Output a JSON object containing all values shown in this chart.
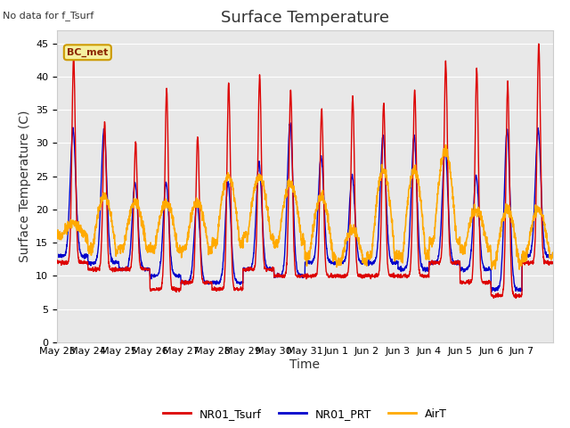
{
  "title": "Surface Temperature",
  "ylabel": "Surface Temperature (C)",
  "xlabel": "Time",
  "annotation": "No data for f_Tsurf",
  "legend_label": "BC_met",
  "ylim": [
    0,
    47
  ],
  "yticks": [
    0,
    5,
    10,
    15,
    20,
    25,
    30,
    35,
    40,
    45
  ],
  "series_labels": [
    "NR01_Tsurf",
    "NR01_PRT",
    "AirT"
  ],
  "series_colors": [
    "#dd0000",
    "#0000cc",
    "#ffaa00"
  ],
  "fig_bg_color": "#ffffff",
  "plot_bg_color": "#e8e8e8",
  "grid_color": "#ffffff",
  "date_labels": [
    "May 23",
    "May 24",
    "May 25",
    "May 26",
    "May 27",
    "May 28",
    "May 29",
    "May 30",
    "May 31",
    "Jun 1",
    "Jun 2",
    "Jun 3",
    "Jun 4",
    "Jun 5",
    "Jun 6",
    "Jun 7"
  ],
  "n_days": 16,
  "title_fontsize": 13,
  "axis_fontsize": 10,
  "tick_fontsize": 8,
  "tsurf_peaks": [
    43,
    33,
    30,
    38,
    31,
    39,
    40,
    38,
    35,
    37,
    36,
    38,
    42,
    41,
    39,
    45
  ],
  "tsurf_mins": [
    12,
    11,
    11,
    8,
    9,
    8,
    11,
    10,
    10,
    10,
    10,
    10,
    12,
    9,
    7,
    12
  ],
  "prt_peaks": [
    32,
    32,
    24,
    24,
    21,
    24,
    27,
    33,
    28,
    25,
    31,
    31,
    29,
    25,
    32,
    32
  ],
  "prt_mins": [
    13,
    12,
    11,
    10,
    9,
    9,
    11,
    10,
    12,
    12,
    12,
    11,
    12,
    11,
    8,
    13
  ],
  "airt_peaks": [
    18,
    22,
    21,
    21,
    21,
    25,
    25,
    24,
    22,
    17,
    26,
    26,
    29,
    20,
    20,
    20
  ],
  "airt_mins": [
    16,
    14,
    14,
    14,
    14,
    15,
    16,
    15,
    13,
    12,
    13,
    13,
    15,
    14,
    12,
    13
  ]
}
